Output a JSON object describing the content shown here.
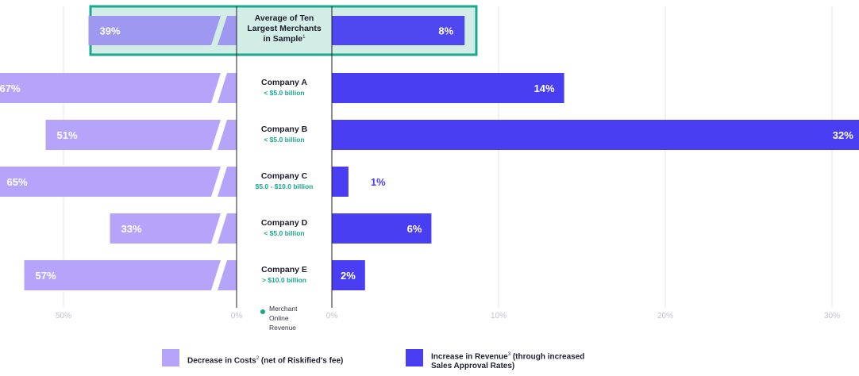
{
  "chart_data": {
    "type": "bar",
    "subtype": "diverging-horizontal-bar",
    "title": "",
    "left_axis": {
      "label": "",
      "ticks": [
        "50%",
        "0%"
      ],
      "unit": "%"
    },
    "right_axis": {
      "label": "",
      "ticks": [
        "0%",
        "10%",
        "20%",
        "30%"
      ],
      "unit": "%",
      "range": [
        0,
        31
      ]
    },
    "center_note": "Merchant Online Revenue",
    "grid": true,
    "legend_position": "bottom",
    "summary": {
      "label_lines": [
        "Average of Ten",
        "Largest Merchants",
        "in Sample"
      ],
      "footnote": "1",
      "decrease_in_costs": 39,
      "increase_in_revenue": 8,
      "decrease_label": "39%",
      "increase_label": "8%"
    },
    "categories": [
      {
        "name": "Company A",
        "revenue_band": "< $5.0 billion"
      },
      {
        "name": "Company B",
        "revenue_band": "< $5.0 billion"
      },
      {
        "name": "Company C",
        "revenue_band": "$5.0 - $10.0 billion"
      },
      {
        "name": "Company D",
        "revenue_band": "< $5.0 billion"
      },
      {
        "name": "Company E",
        "revenue_band": "> $10.0 billion"
      }
    ],
    "series": [
      {
        "name": "Decrease in Costs (net of Riskified's fee)",
        "values": [
          67,
          51,
          65,
          33,
          57
        ],
        "labels": [
          "67%",
          "51%",
          "65%",
          "33%",
          "57%"
        ]
      },
      {
        "name": "Increase in Revenue (through increased Sales Approval Rates)",
        "values": [
          14,
          32,
          1,
          6,
          2
        ],
        "labels": [
          "14%",
          "32%",
          "1%",
          "6%",
          "2%"
        ]
      }
    ]
  },
  "legend": {
    "cost": {
      "text": "Decrease in Costs",
      "sup": "2",
      "suffix": " (net of Riskified's fee)"
    },
    "revenue": {
      "text": "Increase in Revenue",
      "sup": "3",
      "line1_suffix": " (through increased",
      "line2": "Sales Approval Rates)"
    }
  },
  "colors": {
    "cost": "#b6a4fb",
    "cost_summary": "#9e98f1",
    "revenue": "#4a3ef2",
    "revenue_summary": "#4f47ef",
    "highlight_border": "#1aa88f",
    "highlight_fill": "#d2ece6",
    "accent_text": "#19a68a",
    "grid": "#e6e6ec",
    "tick_text": "#c0c0cc"
  }
}
